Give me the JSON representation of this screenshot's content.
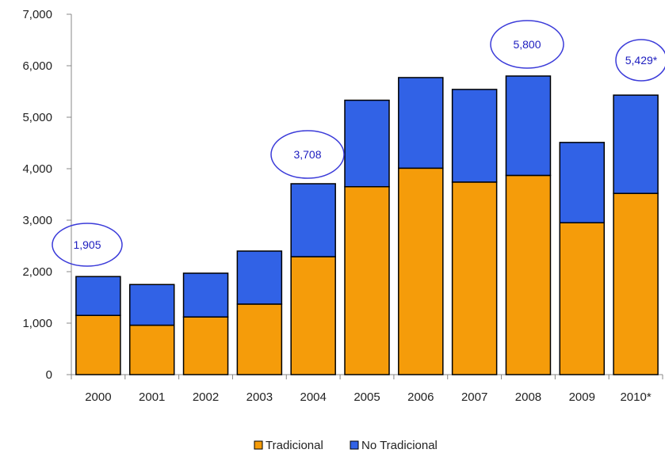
{
  "chart_data": {
    "type": "bar",
    "stacked": true,
    "categories": [
      "2000",
      "2001",
      "2002",
      "2003",
      "2004",
      "2005",
      "2006",
      "2007",
      "2008",
      "2009",
      "2010*"
    ],
    "series": [
      {
        "name": "Tradicional",
        "color": "#f59c0a",
        "values": [
          1150,
          960,
          1120,
          1370,
          2290,
          3650,
          4010,
          3740,
          3870,
          2950,
          3520
        ]
      },
      {
        "name": "No Tradicional",
        "color": "#3162e6",
        "values": [
          755,
          790,
          850,
          1030,
          1418,
          1680,
          1760,
          1800,
          1930,
          1560,
          1909
        ]
      }
    ],
    "ylim": [
      0,
      7000
    ],
    "yticks": [
      {
        "value": 0,
        "label": "0"
      },
      {
        "value": 1000,
        "label": "1,000"
      },
      {
        "value": 2000,
        "label": "2,000"
      },
      {
        "value": 3000,
        "label": "3,000"
      },
      {
        "value": 4000,
        "label": "4,000"
      },
      {
        "value": 5000,
        "label": "5,000"
      },
      {
        "value": 6000,
        "label": "6,000"
      },
      {
        "value": 7000,
        "label": "7,000"
      }
    ],
    "annotations": [
      {
        "category": "2000",
        "label": "1,905"
      },
      {
        "category": "2004",
        "label": "3,708"
      },
      {
        "category": "2008",
        "label": "5,800"
      },
      {
        "category": "2010*",
        "label": "5,429*"
      }
    ],
    "legend_position": "bottom",
    "grid": false,
    "title": "",
    "xlabel": "",
    "ylabel": ""
  }
}
